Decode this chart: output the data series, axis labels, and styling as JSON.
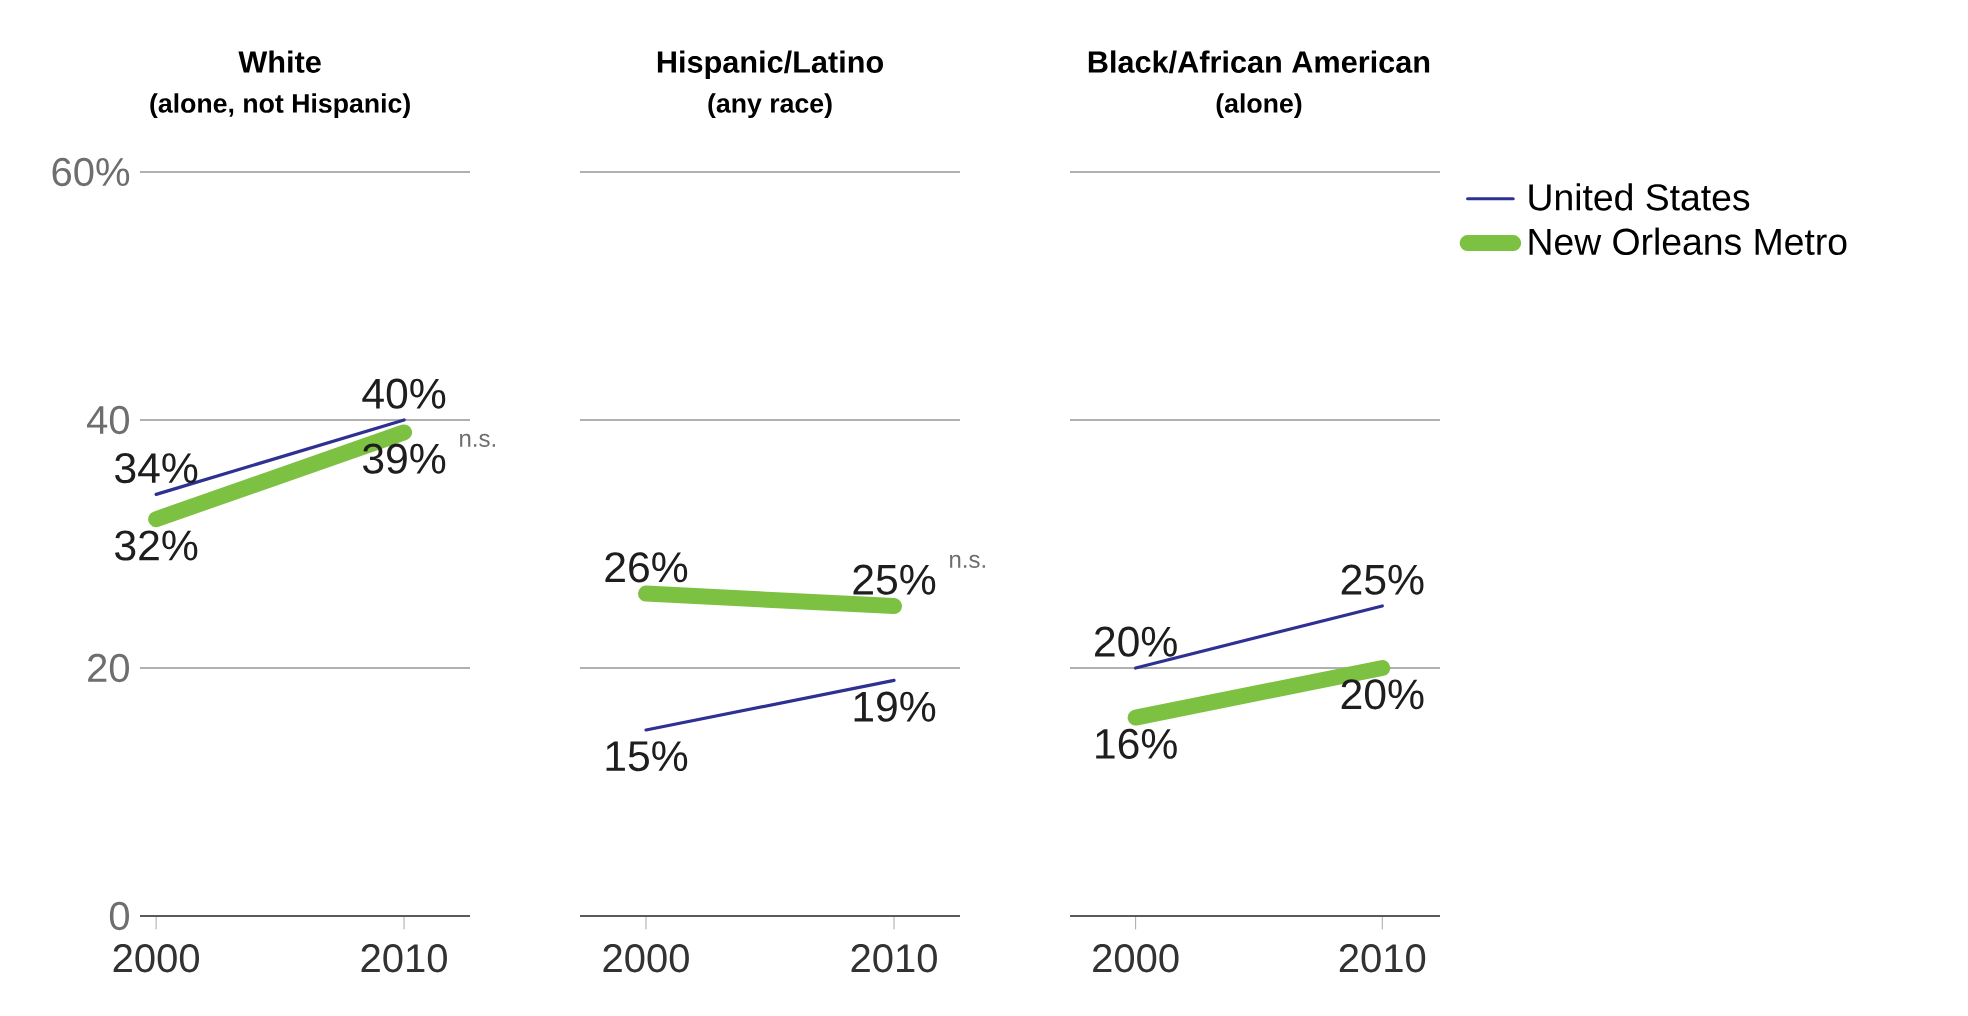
{
  "chart_data": [
    {
      "type": "line",
      "title": "White",
      "subtitle": "(alone, not Hispanic)",
      "categories": [
        "2000",
        "2010"
      ],
      "ylim": [
        0,
        60
      ],
      "yticks": [
        0,
        20,
        40,
        {
          "value": 60,
          "label": "60%"
        }
      ],
      "grid": "y",
      "series": [
        {
          "color": "#2e3192",
          "values": [
            34,
            40
          ],
          "value_labels": [
            "34%",
            "40%"
          ]
        },
        {
          "color": "#7dc142",
          "values": [
            32,
            39
          ],
          "value_labels": [
            "32%",
            "39%"
          ]
        }
      ],
      "annotations": [
        {
          "text": "n.s.",
          "x": "2010",
          "y": 39
        }
      ]
    },
    {
      "type": "line",
      "title": "Hispanic/Latino",
      "subtitle": "(any race)",
      "categories": [
        "2000",
        "2010"
      ],
      "ylim": [
        0,
        60
      ],
      "yticks": [
        0,
        20,
        40,
        60
      ],
      "grid": "y",
      "tick_labels": "x",
      "series": [
        {
          "color": "#2e3192",
          "values": [
            15,
            19
          ],
          "value_labels": [
            "15%",
            "19%"
          ]
        },
        {
          "color": "#7dc142",
          "values": [
            26,
            25
          ],
          "value_labels": [
            "26%",
            "25%"
          ]
        }
      ],
      "annotations": [
        {
          "text": "n.s.",
          "x": "2010",
          "y": 25
        }
      ]
    },
    {
      "type": "line",
      "title": "Black/African American",
      "subtitle": "(alone)",
      "categories": [
        "2000",
        "2010"
      ],
      "ylim": [
        0,
        60
      ],
      "yticks": [
        0,
        20,
        40,
        60
      ],
      "grid": "y",
      "tick_labels": "x",
      "legend": "right",
      "series": [
        {
          "name": "United States",
          "color": "#2e3192",
          "values": [
            20,
            25
          ],
          "value_labels": [
            "20%",
            "25%"
          ]
        },
        {
          "name": "New Orleans Metro",
          "color": "#7dc142",
          "values": [
            16,
            20
          ],
          "value_labels": [
            "16%",
            "20%"
          ]
        }
      ]
    }
  ]
}
